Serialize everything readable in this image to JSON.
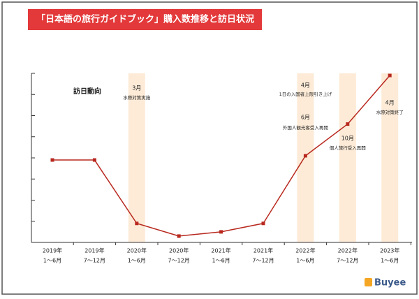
{
  "chart_data": {
    "type": "line",
    "title": "「日本語の旅行ガイドブック」購入数推移と訪日状況",
    "series_label": "訪日動向",
    "categories": [
      [
        "2019年",
        "1～6月"
      ],
      [
        "2019年",
        "7～12月"
      ],
      [
        "2020年",
        "1～6月"
      ],
      [
        "2020年",
        "7～12月"
      ],
      [
        "2021年",
        "1～6月"
      ],
      [
        "2021年",
        "7～12月"
      ],
      [
        "2022年",
        "1～6月"
      ],
      [
        "2022年",
        "7～12月"
      ],
      [
        "2023年",
        "1～6月"
      ]
    ],
    "values": [
      3.9,
      3.9,
      0.9,
      0.3,
      0.5,
      0.9,
      4.1,
      5.6,
      7.9
    ],
    "color": "#b8281e",
    "ylim": [
      0,
      8
    ],
    "yticks": [
      0,
      1,
      2,
      3,
      4,
      5,
      6,
      7,
      8
    ],
    "annotations": [
      {
        "lines": [
          "3月",
          "水際対策実施"
        ]
      },
      {
        "lines": [
          "4月",
          "1日の入国者上限引き上げ",
          "6月",
          "外国人観光客受入再開"
        ]
      },
      {
        "lines": [
          "10月",
          "個人旅行受入再開"
        ]
      },
      {
        "lines": [
          "4月",
          "水際対策終了"
        ]
      }
    ],
    "band_color": "#fdebd7",
    "logo": "Buyee"
  }
}
